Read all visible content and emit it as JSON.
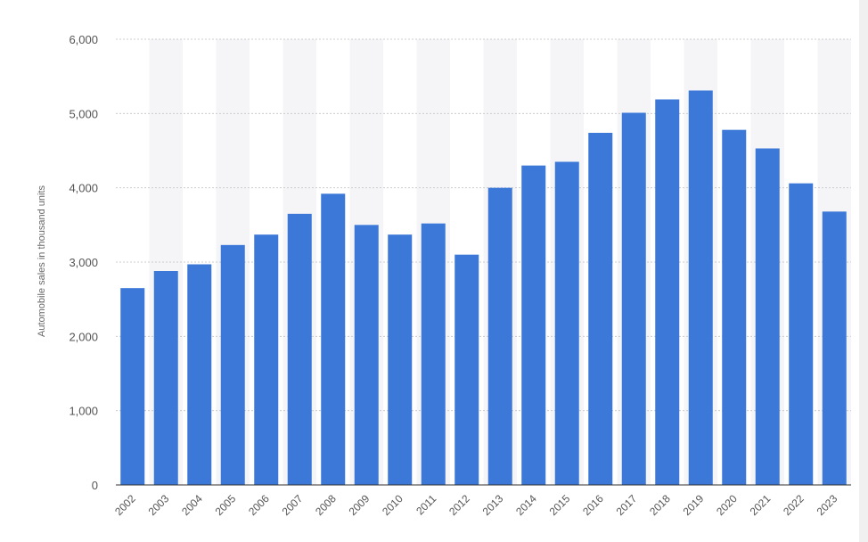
{
  "chart_data": {
    "type": "bar",
    "title": "",
    "xlabel": "",
    "ylabel": "Automobile sales in thousand units",
    "categories": [
      "2002",
      "2003",
      "2004",
      "2005",
      "2006",
      "2007",
      "2008",
      "2009",
      "2010",
      "2011",
      "2012",
      "2013",
      "2014",
      "2015",
      "2016",
      "2017",
      "2018",
      "2019",
      "2020",
      "2021",
      "2022",
      "2023"
    ],
    "values": [
      2650,
      2880,
      2970,
      3230,
      3370,
      3650,
      3920,
      3500,
      3370,
      3520,
      3100,
      4000,
      4300,
      4350,
      4740,
      5010,
      5190,
      5310,
      4780,
      4530,
      4060,
      3680
    ],
    "ylim": [
      0,
      6000
    ],
    "yticks": [
      0,
      1000,
      2000,
      3000,
      4000,
      5000,
      6000
    ],
    "ytick_labels": [
      "0",
      "1,000",
      "2,000",
      "3,000",
      "4,000",
      "5,000",
      "6,000"
    ],
    "grid": true,
    "legend": "none",
    "colors": {
      "bar": "#3b78d8",
      "band": "#f5f5f7",
      "grid": "#cccccc",
      "axis": "#333333"
    }
  }
}
